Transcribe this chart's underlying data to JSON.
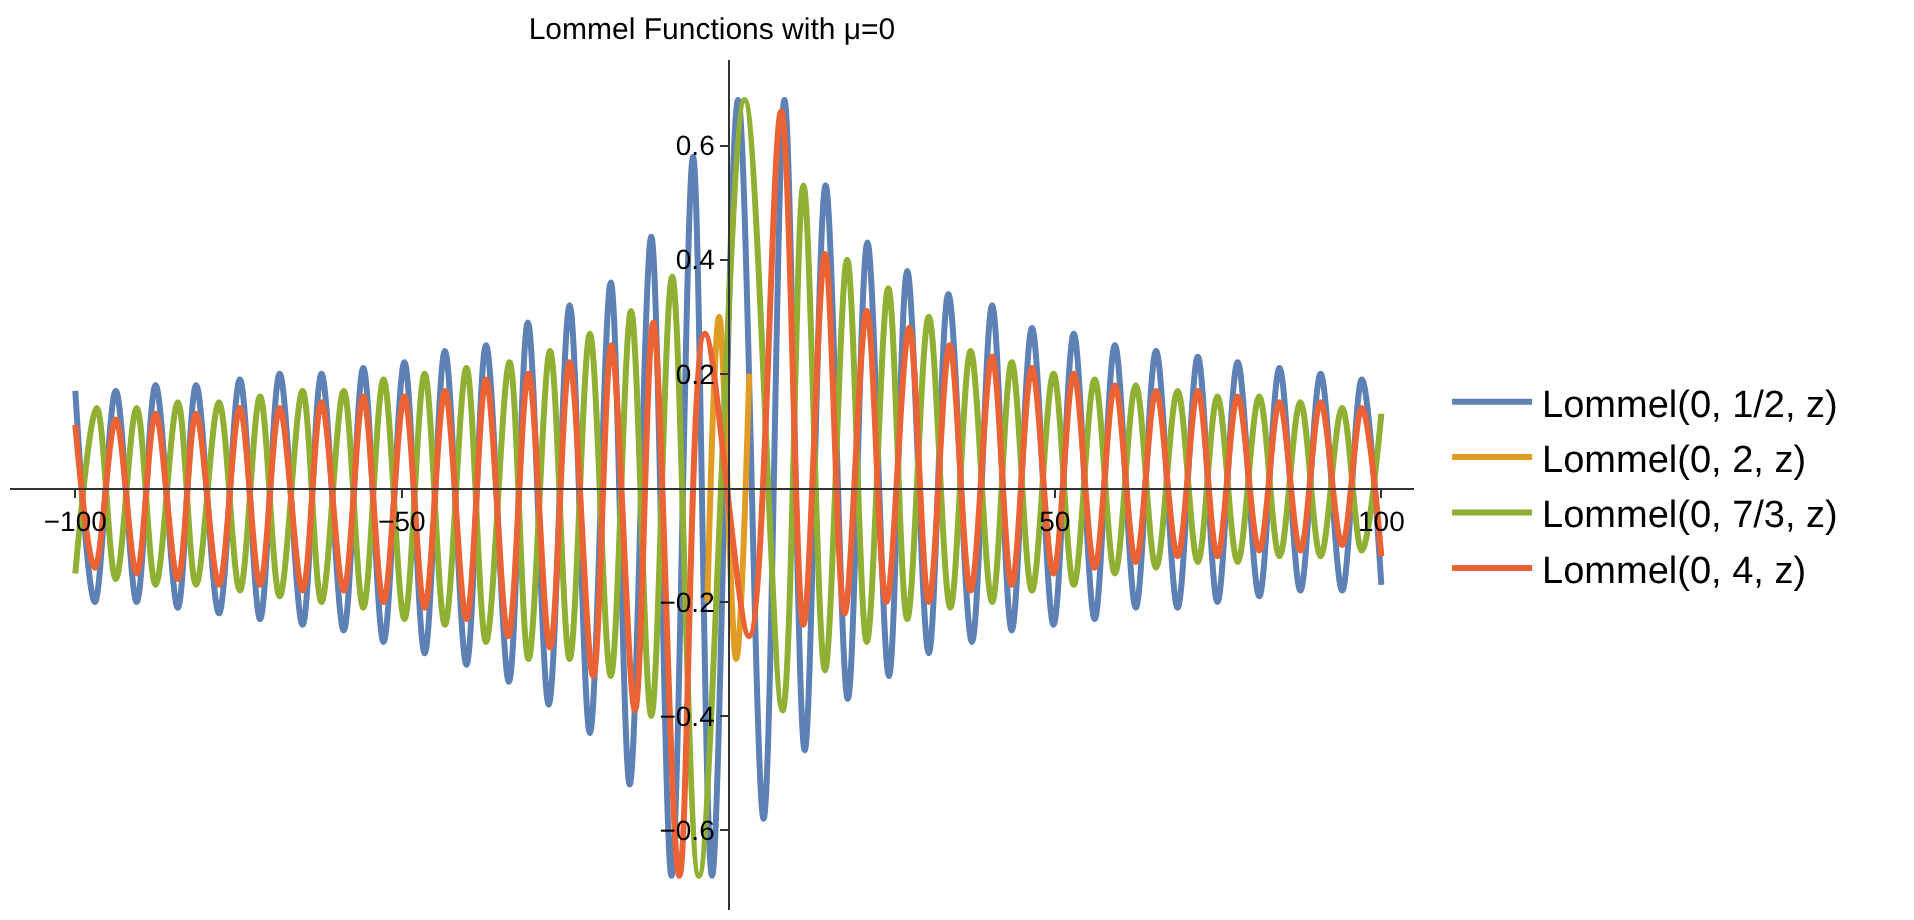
{
  "chart_data": {
    "type": "line",
    "title": "Lommel Functions with μ=0",
    "xlim": [
      -110,
      105
    ],
    "ylim": [
      -0.74,
      0.75
    ],
    "xticks": [
      -100,
      -50,
      50,
      100
    ],
    "yticks": [
      -0.6,
      -0.4,
      -0.2,
      0.2,
      0.4,
      0.6
    ],
    "legend": "right",
    "marker": "none",
    "line_style": "solid",
    "series": [
      {
        "name": "Lommel(0, 1/2, z)",
        "color": "#5e81b5",
        "x": [
          -100,
          -97.0,
          -93.8,
          -90.6,
          -87.7,
          -84.3,
          -81.5,
          -78.0,
          -74.8,
          -71.7,
          -68.7,
          -65.2,
          -62.3,
          -58.9,
          -55.9,
          -52.8,
          -49.6,
          -46.5,
          -43.4,
          -40.1,
          -37.1,
          -33.6,
          -30.7,
          -27.5,
          -24.3,
          -21.2,
          -18.0,
          -15.1,
          -11.8,
          -8.7,
          -5.4,
          -2.5,
          1.5,
          5.4,
          8.6,
          11.7,
          14.9,
          18.3,
          21.3,
          24.6,
          27.4,
          30.7,
          33.7,
          37.3,
          40.4,
          43.4,
          46.5,
          49.8,
          52.9,
          56.1,
          59.2,
          62.4,
          65.5,
          68.8,
          71.9,
          74.9,
          78.0,
          81.3,
          84.4,
          87.6,
          90.7,
          94.0,
          97.0,
          100
        ],
        "values": [
          0.17,
          -0.2,
          0.17,
          -0.2,
          0.18,
          -0.21,
          0.18,
          -0.22,
          0.19,
          -0.23,
          0.2,
          -0.24,
          0.2,
          -0.25,
          0.21,
          -0.27,
          0.22,
          -0.29,
          0.24,
          -0.31,
          0.25,
          -0.34,
          0.29,
          -0.38,
          0.32,
          -0.43,
          0.36,
          -0.52,
          0.44,
          -0.68,
          0.58,
          -0.68,
          0.68,
          -0.58,
          0.68,
          -0.46,
          0.53,
          -0.37,
          0.43,
          -0.33,
          0.38,
          -0.29,
          0.34,
          -0.27,
          0.32,
          -0.25,
          0.28,
          -0.24,
          0.27,
          -0.23,
          0.25,
          -0.21,
          0.24,
          -0.21,
          0.23,
          -0.2,
          0.22,
          -0.19,
          0.21,
          -0.18,
          0.2,
          -0.18,
          0.19,
          -0.17
        ]
      },
      {
        "name": "Lommel(0, 2, z)",
        "color": "#e19c24",
        "x": [
          -3.2,
          -1.4,
          1.2,
          3.2
        ],
        "values": [
          -0.2,
          0.3,
          -0.3,
          0.2
        ]
      },
      {
        "name": "Lommel(0, 7/3, z)",
        "color": "#8fb032",
        "x": [
          -100,
          -96.7,
          -93.8,
          -90.6,
          -87.7,
          -84.3,
          -81.5,
          -78.0,
          -74.8,
          -71.7,
          -68.7,
          -65.2,
          -62.3,
          -58.9,
          -55.9,
          -52.8,
          -49.6,
          -46.5,
          -43.4,
          -40.1,
          -37.1,
          -33.5,
          -30.6,
          -27.3,
          -24.3,
          -21.2,
          -18.0,
          -14.9,
          -11.8,
          -8.6,
          -4.5,
          2.5,
          8.3,
          11.5,
          14.8,
          18.2,
          21.2,
          24.5,
          27.4,
          30.7,
          34.0,
          37.1,
          40.4,
          43.4,
          46.5,
          49.8,
          52.9,
          56.1,
          59.2,
          62.4,
          65.5,
          68.8,
          71.9,
          74.9,
          78.0,
          81.3,
          84.4,
          87.6,
          90.7,
          94.0,
          97.0,
          100
        ],
        "values": [
          -0.15,
          0.14,
          -0.16,
          0.14,
          -0.17,
          0.15,
          -0.17,
          0.15,
          -0.18,
          0.16,
          -0.19,
          0.17,
          -0.2,
          0.17,
          -0.21,
          0.19,
          -0.23,
          0.2,
          -0.24,
          0.21,
          -0.27,
          0.22,
          -0.3,
          0.24,
          -0.3,
          0.27,
          -0.33,
          0.31,
          -0.4,
          0.37,
          -0.68,
          0.68,
          -0.39,
          0.53,
          -0.32,
          0.4,
          -0.27,
          0.35,
          -0.23,
          0.3,
          -0.21,
          0.24,
          -0.2,
          0.22,
          -0.18,
          0.2,
          -0.17,
          0.19,
          -0.15,
          0.18,
          -0.14,
          0.17,
          -0.13,
          0.16,
          -0.13,
          0.16,
          -0.12,
          0.15,
          -0.12,
          0.14,
          -0.11,
          0.13
        ]
      },
      {
        "name": "Lommel(0, 4, z)",
        "color": "#eb6235",
        "x": [
          -100,
          -97.0,
          -93.8,
          -90.6,
          -87.7,
          -84.3,
          -81.5,
          -78.0,
          -74.8,
          -71.7,
          -68.7,
          -65.2,
          -62.3,
          -58.9,
          -55.9,
          -52.8,
          -49.6,
          -46.5,
          -43.4,
          -40.1,
          -37.1,
          -33.7,
          -30.6,
          -27.3,
          -24.3,
          -20.7,
          -17.9,
          -14.3,
          -11.5,
          -7.5,
          -3.6,
          3.2,
          8.1,
          11.5,
          14.8,
          17.8,
          21.2,
          24.2,
          27.7,
          30.7,
          33.9,
          37.1,
          40.4,
          43.4,
          46.5,
          49.8,
          52.9,
          56.1,
          59.2,
          62.4,
          65.5,
          68.8,
          71.9,
          74.9,
          78.0,
          81.3,
          84.4,
          87.6,
          90.7,
          94.0,
          97.0,
          100
        ],
        "values": [
          0.11,
          -0.14,
          0.12,
          -0.15,
          0.13,
          -0.16,
          0.13,
          -0.17,
          0.14,
          -0.17,
          0.14,
          -0.18,
          0.15,
          -0.18,
          0.16,
          -0.2,
          0.16,
          -0.21,
          0.17,
          -0.23,
          0.19,
          -0.26,
          0.2,
          -0.28,
          0.22,
          -0.33,
          0.25,
          -0.39,
          0.29,
          -0.68,
          0.27,
          -0.26,
          0.66,
          -0.24,
          0.41,
          -0.22,
          0.31,
          -0.2,
          0.28,
          -0.2,
          0.25,
          -0.18,
          0.23,
          -0.17,
          0.21,
          -0.15,
          0.2,
          -0.14,
          0.18,
          -0.13,
          0.17,
          -0.12,
          0.17,
          -0.12,
          0.16,
          -0.11,
          0.15,
          -0.11,
          0.15,
          -0.1,
          0.14,
          -0.12
        ]
      }
    ]
  }
}
